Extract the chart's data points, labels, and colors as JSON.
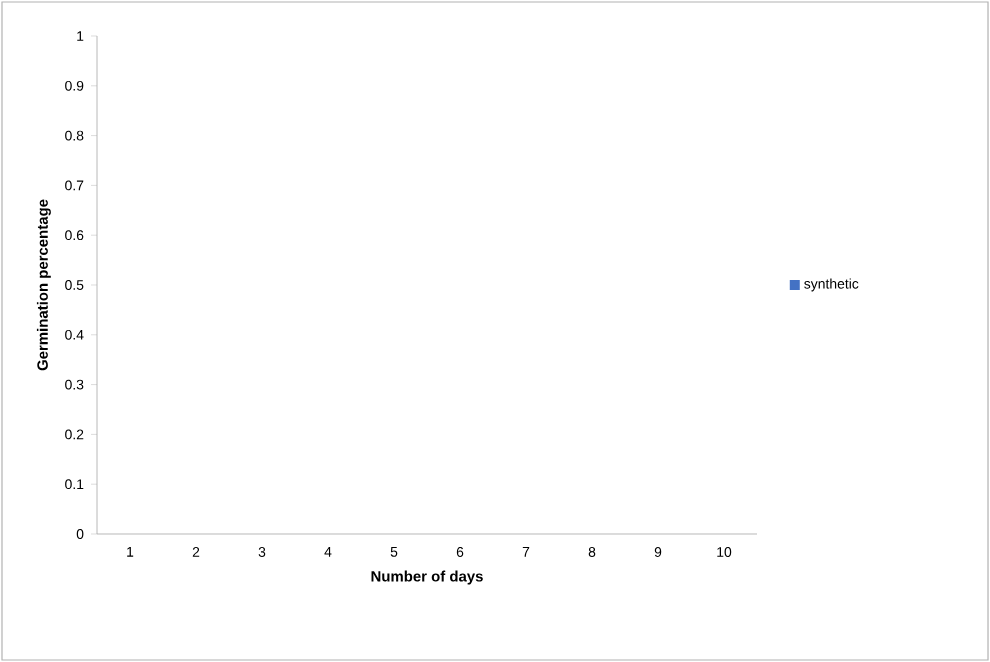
{
  "chart_data": {
    "type": "bar",
    "xlabel": "Number of days",
    "ylabel": "Germination percentage",
    "categories": [
      "1",
      "2",
      "3",
      "4",
      "5",
      "6",
      "7",
      "8",
      "9",
      "10"
    ],
    "series": [
      {
        "name": "synthetic",
        "color": "#4472c4",
        "values": [
          0,
          0,
          0,
          0,
          0,
          0,
          0,
          0,
          0,
          0
        ]
      }
    ],
    "ylim": [
      0,
      1
    ],
    "yticks": [
      0,
      0.1,
      0.2,
      0.3,
      0.4,
      0.5,
      0.6,
      0.7,
      0.8,
      0.9,
      1
    ],
    "legend": "right",
    "grid": false
  }
}
